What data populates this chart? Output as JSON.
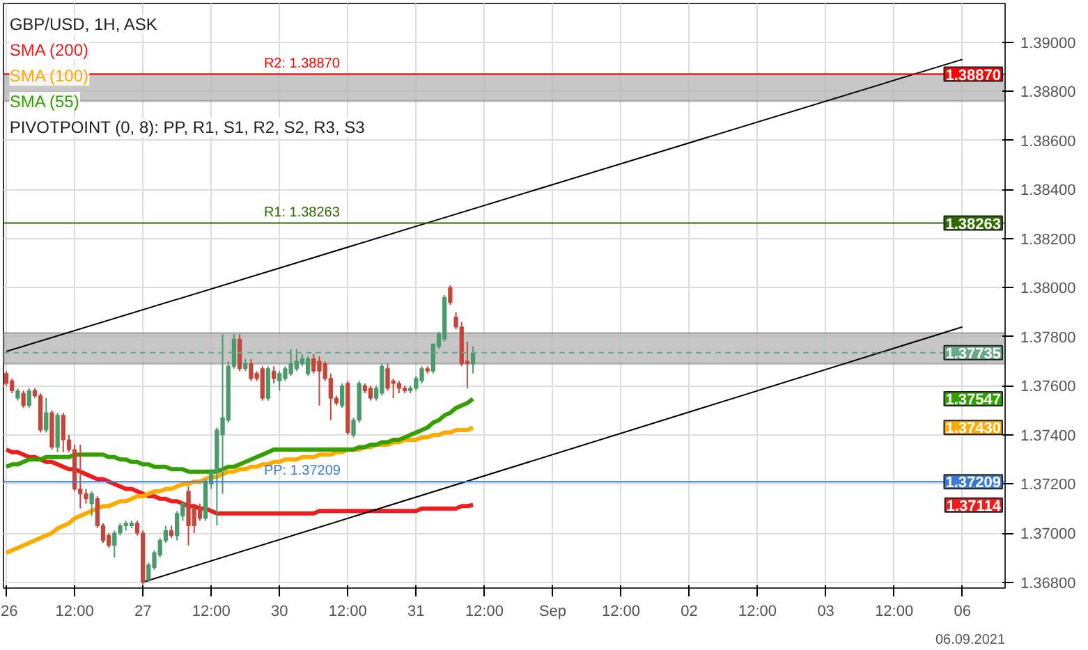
{
  "chart_data": {
    "type": "candlestick",
    "title": "GBP/USD, 1H, ASK",
    "categories": [
      "26",
      null,
      null,
      null,
      null,
      null,
      null,
      null,
      null,
      null,
      null,
      null,
      "12:00",
      null,
      null,
      null,
      null,
      null,
      null,
      null,
      null,
      null,
      null,
      null,
      "27",
      null,
      null,
      null,
      null,
      null,
      null,
      null,
      null,
      null,
      null,
      null,
      "12:00",
      null,
      null,
      null,
      null,
      null,
      null,
      null,
      null,
      null,
      null,
      null,
      "30",
      null,
      null,
      null,
      null,
      null,
      null,
      null,
      null,
      null,
      null,
      null,
      "12:00",
      null,
      null,
      null,
      null,
      null,
      null,
      null,
      null,
      null,
      null,
      null,
      "31",
      null,
      null,
      null,
      null,
      null,
      null,
      null,
      null,
      null,
      null,
      null,
      "12:00",
      null,
      null,
      null,
      null,
      null,
      null,
      null,
      null,
      null,
      null,
      null,
      "Sep",
      null,
      null,
      null,
      null,
      null,
      null,
      null,
      null,
      null,
      null,
      null,
      "12:00",
      null,
      null,
      null,
      null,
      null,
      null,
      null,
      null,
      null,
      null,
      null,
      "02",
      null,
      null,
      null,
      null,
      null,
      null,
      null,
      null,
      null,
      null,
      null,
      "12:00",
      null,
      null,
      null,
      null,
      null,
      null,
      null,
      null,
      null,
      null,
      null,
      "03",
      null,
      null,
      null,
      null,
      null,
      null,
      null,
      null,
      null,
      null,
      null,
      "12:00",
      null,
      null,
      null,
      null,
      null,
      null,
      null,
      null,
      null,
      null,
      null,
      "06",
      null,
      null,
      null,
      null,
      null,
      null,
      null
    ],
    "ohlc": [
      [
        1.3765,
        1.3766,
        1.376,
        1.3761
      ],
      [
        1.3762,
        1.3763,
        1.3757,
        1.3758
      ],
      [
        1.3755,
        1.3759,
        1.3754,
        1.3758
      ],
      [
        1.3757,
        1.3758,
        1.3751,
        1.3752
      ],
      [
        1.3752,
        1.3759,
        1.3751,
        1.3758
      ],
      [
        1.3758,
        1.3759,
        1.3755,
        1.3756
      ],
      [
        1.3756,
        1.3757,
        1.3741,
        1.3742
      ],
      [
        1.3742,
        1.3755,
        1.3741,
        1.3749
      ],
      [
        1.3749,
        1.375,
        1.3734,
        1.3735
      ],
      [
        1.3735,
        1.3749,
        1.3733,
        1.3748
      ],
      [
        1.3748,
        1.3749,
        1.3733,
        1.3738
      ],
      [
        1.3738,
        1.374,
        1.3733,
        1.3734
      ],
      [
        1.3734,
        1.3736,
        1.3717,
        1.3718
      ],
      [
        1.3718,
        1.3736,
        1.371,
        1.3716
      ],
      [
        1.3716,
        1.3718,
        1.3712,
        1.3714
      ],
      [
        1.3712,
        1.3717,
        1.3707,
        1.3716
      ],
      [
        1.3714,
        1.3715,
        1.3702,
        1.3703
      ],
      [
        1.3703,
        1.3704,
        1.3696,
        1.3697
      ],
      [
        1.3699,
        1.37,
        1.3694,
        1.3695
      ],
      [
        1.3695,
        1.3701,
        1.369,
        1.37
      ],
      [
        1.37,
        1.3704,
        1.3699,
        1.3703
      ],
      [
        1.3703,
        1.3705,
        1.3701,
        1.3704
      ],
      [
        1.3703,
        1.3705,
        1.3702,
        1.3704
      ],
      [
        1.3704,
        1.3705,
        1.3699,
        1.37
      ],
      [
        1.37,
        1.3701,
        1.3679,
        1.368
      ],
      [
        1.3681,
        1.3688,
        1.368,
        1.3687
      ],
      [
        1.3686,
        1.3693,
        1.3685,
        1.3692
      ],
      [
        1.3691,
        1.3698,
        1.369,
        1.3697
      ],
      [
        1.3697,
        1.3703,
        1.3696,
        1.3701
      ],
      [
        1.3701,
        1.3703,
        1.3698,
        1.3699
      ],
      [
        1.3699,
        1.3709,
        1.3697,
        1.3708
      ],
      [
        1.3707,
        1.3713,
        1.3705,
        1.3712
      ],
      [
        1.3717,
        1.3719,
        1.3695,
        1.3703
      ],
      [
        1.371,
        1.3712,
        1.37,
        1.3703
      ],
      [
        1.371,
        1.3712,
        1.3705,
        1.3706
      ],
      [
        1.3706,
        1.3722,
        1.3705,
        1.3721
      ],
      [
        1.372,
        1.3726,
        1.3718,
        1.3725
      ],
      [
        1.3725,
        1.3743,
        1.3703,
        1.3742
      ],
      [
        1.374,
        1.3781,
        1.3716,
        1.3747
      ],
      [
        1.3746,
        1.377,
        1.3745,
        1.3768
      ],
      [
        1.3768,
        1.3781,
        1.3767,
        1.3779
      ],
      [
        1.3779,
        1.3781,
        1.3766,
        1.3767
      ],
      [
        1.3767,
        1.3771,
        1.3766,
        1.3769
      ],
      [
        1.3769,
        1.3771,
        1.3762,
        1.3763
      ],
      [
        1.3765,
        1.3766,
        1.3762,
        1.3763
      ],
      [
        1.3767,
        1.3768,
        1.3754,
        1.3755
      ],
      [
        1.3755,
        1.3768,
        1.3754,
        1.3767
      ],
      [
        1.3766,
        1.3768,
        1.3761,
        1.3763
      ],
      [
        1.3762,
        1.3766,
        1.3758,
        1.3765
      ],
      [
        1.3763,
        1.3768,
        1.3762,
        1.3767
      ],
      [
        1.3765,
        1.3775,
        1.3764,
        1.3769
      ],
      [
        1.3767,
        1.3775,
        1.3766,
        1.377
      ],
      [
        1.3769,
        1.3773,
        1.3768,
        1.3771
      ],
      [
        1.3765,
        1.3772,
        1.3764,
        1.3771
      ],
      [
        1.3771,
        1.3773,
        1.3765,
        1.3766
      ],
      [
        1.377,
        1.3772,
        1.3752,
        1.3766
      ],
      [
        1.3769,
        1.377,
        1.3762,
        1.3763
      ],
      [
        1.3763,
        1.3765,
        1.3746,
        1.3755
      ],
      [
        1.3755,
        1.3756,
        1.3752,
        1.3753
      ],
      [
        1.3752,
        1.3761,
        1.3751,
        1.376
      ],
      [
        1.3761,
        1.3762,
        1.374,
        1.3741
      ],
      [
        1.374,
        1.3747,
        1.3739,
        1.3746
      ],
      [
        1.3746,
        1.3762,
        1.3745,
        1.3761
      ],
      [
        1.376,
        1.3761,
        1.3757,
        1.3758
      ],
      [
        1.3759,
        1.376,
        1.3754,
        1.3755
      ],
      [
        1.3755,
        1.376,
        1.3754,
        1.3759
      ],
      [
        1.3757,
        1.3769,
        1.3756,
        1.3768
      ],
      [
        1.3767,
        1.3769,
        1.3758,
        1.3759
      ],
      [
        1.3762,
        1.3763,
        1.3755,
        1.3761
      ],
      [
        1.3761,
        1.3762,
        1.3757,
        1.3759
      ],
      [
        1.3759,
        1.376,
        1.3757,
        1.3758
      ],
      [
        1.3758,
        1.376,
        1.3757,
        1.3759
      ],
      [
        1.3759,
        1.3764,
        1.3758,
        1.3763
      ],
      [
        1.3762,
        1.3768,
        1.3761,
        1.3767
      ],
      [
        1.3767,
        1.3768,
        1.3765,
        1.3766
      ],
      [
        1.3766,
        1.3777,
        1.3765,
        1.3777
      ],
      [
        1.3776,
        1.3782,
        1.3775,
        1.3781
      ],
      [
        1.3779,
        1.3797,
        1.3778,
        1.3796
      ],
      [
        1.38,
        1.3801,
        1.3793,
        1.3794
      ],
      [
        1.3788,
        1.379,
        1.3783,
        1.3784
      ],
      [
        1.3784,
        1.3786,
        1.3768,
        1.3769
      ],
      [
        1.377,
        1.3778,
        1.3759,
        1.3769
      ],
      [
        1.3769,
        1.3776,
        1.3765,
        1.37735
      ],
      null,
      null,
      null,
      null,
      null,
      null,
      null,
      null,
      null,
      null,
      null,
      null,
      null,
      null,
      null,
      null,
      null,
      null,
      null,
      null,
      null,
      null,
      null,
      null,
      null,
      null,
      null,
      null,
      null,
      null,
      null,
      null,
      null,
      null,
      null,
      null,
      null,
      null,
      null,
      null,
      null,
      null,
      null,
      null,
      null,
      null,
      null,
      null,
      null,
      null,
      null,
      null,
      null,
      null,
      null,
      null,
      null,
      null,
      null,
      null,
      null,
      null,
      null,
      null,
      null,
      null,
      null,
      null,
      null,
      null,
      null,
      null,
      null,
      null,
      null,
      null,
      null,
      null,
      null,
      null,
      null,
      null,
      null,
      null,
      null,
      null,
      null,
      null,
      null,
      null,
      null,
      null,
      null
    ],
    "colors": [
      "#c4463a",
      "#c4463a",
      "#4a9a6a",
      "#c4463a",
      "#4a9a6a",
      "#c4463a",
      "#c4463a",
      "#4a9a6a",
      "#c4463a",
      "#4a9a6a",
      "#c4463a",
      "#c4463a",
      "#c4463a",
      "#c4463a",
      "#c4463a",
      "#4a9a6a",
      "#c4463a",
      "#c4463a",
      "#c4463a",
      "#4a9a6a",
      "#4a9a6a",
      "#4a9a6a",
      "#4a9a6a",
      "#c4463a",
      "#c4463a",
      "#4a9a6a",
      "#4a9a6a",
      "#4a9a6a",
      "#4a9a6a",
      "#c4463a",
      "#4a9a6a",
      "#4a9a6a",
      "#c4463a",
      "#c4463a",
      "#c4463a",
      "#4a9a6a",
      "#4a9a6a",
      "#4a9a6a",
      "#4a9a6a",
      "#4a9a6a",
      "#4a9a6a",
      "#c4463a",
      "#4a9a6a",
      "#c4463a",
      "#c4463a",
      "#c4463a",
      "#4a9a6a",
      "#c4463a",
      "#4a9a6a",
      "#4a9a6a",
      "#4a9a6a",
      "#4a9a6a",
      "#4a9a6a",
      "#4a9a6a",
      "#c4463a",
      "#c4463a",
      "#c4463a",
      "#c4463a",
      "#c4463a",
      "#4a9a6a",
      "#c4463a",
      "#4a9a6a",
      "#4a9a6a",
      "#c4463a",
      "#c4463a",
      "#4a9a6a",
      "#4a9a6a",
      "#c4463a",
      "#c4463a",
      "#c4463a",
      "#c4463a",
      "#4a9a6a",
      "#4a9a6a",
      "#4a9a6a",
      "#c4463a",
      "#4a9a6a",
      "#4a9a6a",
      "#4a9a6a",
      "#c4463a",
      "#c4463a",
      "#c4463a",
      "#c4463a",
      "#4a9a6a",
      null,
      null,
      null,
      null,
      null,
      null,
      null,
      null,
      null,
      null,
      null,
      null,
      null,
      null,
      null,
      null,
      null,
      null,
      null,
      null,
      null,
      null,
      null,
      null,
      null,
      null,
      null,
      null,
      null,
      null,
      null,
      null,
      null,
      null,
      null,
      null,
      null,
      null,
      null,
      null,
      null,
      null,
      null,
      null,
      null,
      null,
      null,
      null,
      null,
      null,
      null,
      null,
      null,
      null,
      null,
      null,
      null,
      null,
      null,
      null,
      null,
      null,
      null,
      null,
      null,
      null,
      null,
      null,
      null,
      null,
      null,
      null,
      null,
      null,
      null,
      null,
      null,
      null,
      null,
      null,
      null,
      null,
      null,
      null,
      null,
      null,
      null,
      null,
      null,
      null,
      null,
      null,
      null
    ],
    "series": [
      {
        "type": "line",
        "name": "SMA (200)",
        "color": "#ee1c1c",
        "values": [
          1.3734,
          1.3733,
          1.3733,
          1.3732,
          1.3731,
          1.3731,
          1.373,
          1.3729,
          1.3729,
          1.3728,
          1.3727,
          1.3726,
          1.3726,
          1.3725,
          1.3724,
          1.3723,
          1.3722,
          1.3722,
          1.3721,
          1.372,
          1.3719,
          1.3718,
          1.3718,
          1.3717,
          1.3716,
          1.3715,
          1.3715,
          1.3714,
          1.3714,
          1.3713,
          1.3713,
          1.3712,
          1.3711,
          1.3711,
          1.371,
          1.371,
          1.3709,
          1.3708,
          1.3708,
          1.3708,
          1.3708,
          1.3708,
          1.3708,
          1.3708,
          1.3708,
          1.3708,
          1.3708,
          1.3708,
          1.3708,
          1.3708,
          1.3708,
          1.3708,
          1.3708,
          1.3708,
          1.3708,
          1.3709,
          1.3709,
          1.3709,
          1.3709,
          1.3709,
          1.3709,
          1.3709,
          1.3709,
          1.3709,
          1.3709,
          1.3709,
          1.3709,
          1.3709,
          1.3709,
          1.3709,
          1.3709,
          1.3709,
          1.3709,
          1.371,
          1.371,
          1.371,
          1.371,
          1.371,
          1.371,
          1.371,
          1.3711,
          1.3711,
          1.37114,
          null,
          null,
          null,
          null,
          null,
          null,
          null,
          null,
          null,
          null,
          null,
          null,
          null,
          null,
          null,
          null,
          null,
          null,
          null,
          null,
          null,
          null,
          null,
          null,
          null,
          null,
          null,
          null,
          null,
          null,
          null,
          null,
          null,
          null,
          null,
          null,
          null,
          null,
          null,
          null,
          null,
          null,
          null,
          null,
          null,
          null,
          null,
          null,
          null,
          null,
          null,
          null,
          null,
          null,
          null,
          null,
          null,
          null,
          null,
          null,
          null,
          null,
          null,
          null,
          null,
          null,
          null,
          null,
          null,
          null,
          null,
          null,
          null,
          null,
          null,
          null,
          null,
          null,
          null,
          null,
          null,
          null,
          null,
          null,
          null,
          null,
          null,
          null,
          null,
          null,
          null,
          null,
          null
        ]
      },
      {
        "type": "line",
        "name": "SMA (100)",
        "color": "#ffaa00",
        "values": [
          1.3692,
          1.3693,
          1.3694,
          1.3695,
          1.3696,
          1.3697,
          1.3698,
          1.3699,
          1.37,
          1.3702,
          1.3703,
          1.3704,
          1.3706,
          1.3707,
          1.3708,
          1.3709,
          1.371,
          1.3711,
          1.3711,
          1.3712,
          1.3713,
          1.3713,
          1.3714,
          1.3715,
          1.3715,
          1.3716,
          1.3717,
          1.3717,
          1.3718,
          1.3718,
          1.3719,
          1.372,
          1.372,
          1.3721,
          1.3721,
          1.3722,
          1.3723,
          1.3723,
          1.3724,
          1.3725,
          1.3725,
          1.3726,
          1.3726,
          1.3727,
          1.3727,
          1.3728,
          1.3728,
          1.3729,
          1.3729,
          1.373,
          1.373,
          1.373,
          1.3731,
          1.3731,
          1.3731,
          1.3732,
          1.3732,
          1.3732,
          1.3733,
          1.3733,
          1.3734,
          1.3734,
          1.3734,
          1.3735,
          1.3735,
          1.3736,
          1.3736,
          1.3736,
          1.3737,
          1.3737,
          1.3738,
          1.3738,
          1.3738,
          1.3739,
          1.3739,
          1.374,
          1.374,
          1.3741,
          1.3741,
          1.3742,
          1.3742,
          1.3742,
          1.3743,
          null,
          null,
          null,
          null,
          null,
          null,
          null,
          null,
          null,
          null,
          null,
          null,
          null,
          null,
          null,
          null,
          null,
          null,
          null,
          null,
          null,
          null,
          null,
          null,
          null,
          null,
          null,
          null,
          null,
          null,
          null,
          null,
          null,
          null,
          null,
          null,
          null,
          null,
          null,
          null,
          null,
          null,
          null,
          null,
          null,
          null,
          null,
          null,
          null,
          null,
          null,
          null,
          null,
          null,
          null,
          null,
          null,
          null,
          null,
          null,
          null,
          null,
          null,
          null,
          null,
          null,
          null,
          null,
          null,
          null,
          null,
          null,
          null,
          null,
          null,
          null,
          null,
          null,
          null,
          null,
          null,
          null,
          null,
          null,
          null,
          null,
          null,
          null,
          null,
          null,
          null,
          null,
          null
        ]
      },
      {
        "type": "line",
        "name": "SMA (55)",
        "color": "#33a000",
        "values": [
          1.3727,
          1.3728,
          1.3728,
          1.3729,
          1.373,
          1.373,
          1.373,
          1.3731,
          1.3731,
          1.3731,
          1.3731,
          1.3731,
          1.3732,
          1.3732,
          1.3732,
          1.3732,
          1.3732,
          1.3732,
          1.3731,
          1.3731,
          1.373,
          1.373,
          1.3729,
          1.3729,
          1.3728,
          1.3728,
          1.3727,
          1.3727,
          1.3727,
          1.3726,
          1.3726,
          1.3726,
          1.3725,
          1.3725,
          1.3725,
          1.3725,
          1.3725,
          1.3725,
          1.3726,
          1.3727,
          1.3727,
          1.3728,
          1.3729,
          1.373,
          1.3731,
          1.3732,
          1.3733,
          1.3734,
          1.3734,
          1.3734,
          1.3734,
          1.3734,
          1.3734,
          1.3734,
          1.3734,
          1.3734,
          1.3734,
          1.3734,
          1.3734,
          1.3734,
          1.3734,
          1.3734,
          1.3735,
          1.3735,
          1.3736,
          1.3736,
          1.3737,
          1.3737,
          1.3738,
          1.3738,
          1.3739,
          1.374,
          1.3741,
          1.3742,
          1.3743,
          1.3745,
          1.3746,
          1.3748,
          1.3749,
          1.3751,
          1.3752,
          1.3753,
          1.37547,
          null,
          null,
          null,
          null,
          null,
          null,
          null,
          null,
          null,
          null,
          null,
          null,
          null,
          null,
          null,
          null,
          null,
          null,
          null,
          null,
          null,
          null,
          null,
          null,
          null,
          null,
          null,
          null,
          null,
          null,
          null,
          null,
          null,
          null,
          null,
          null,
          null,
          null,
          null,
          null,
          null,
          null,
          null,
          null,
          null,
          null,
          null,
          null,
          null,
          null,
          null,
          null,
          null,
          null,
          null,
          null,
          null,
          null,
          null,
          null,
          null,
          null,
          null,
          null,
          null,
          null,
          null,
          null,
          null,
          null,
          null,
          null,
          null,
          null,
          null,
          null,
          null,
          null,
          null,
          null,
          null,
          null,
          null,
          null,
          null,
          null,
          null,
          null,
          null,
          null,
          null,
          null,
          null
        ]
      },
      {
        "type": "line",
        "color": "#000000",
        "x": [
          "26",
          "06"
        ],
        "values": [
          1.3774,
          1.3893
        ]
      },
      {
        "type": "line",
        "color": "#000000",
        "x": [
          "27",
          "06"
        ],
        "values": [
          1.368,
          1.3784
        ]
      }
    ],
    "ref_lines": [
      {
        "axis": "y",
        "value": 1.3887,
        "label": "R2: 1.38870",
        "color": "#ff0000"
      },
      {
        "axis": "y",
        "value": 1.38263,
        "label": "R1: 1.38263",
        "color": "#2e6b00"
      },
      {
        "axis": "y",
        "value": 1.37209,
        "label": "PP: 1.37209",
        "color": "#3a7bd5"
      },
      {
        "axis": "y",
        "value": 1.37735,
        "color": "#6aa88a",
        "line_style": "dashed"
      }
    ],
    "bands": [
      {
        "axis": "y",
        "from": 1.3876,
        "to": 1.3887,
        "color": "#b4b4b4"
      },
      {
        "axis": "y",
        "from": 1.3769,
        "to": 1.37815,
        "color": "#b4b4b4"
      }
    ],
    "annotations": [
      "PIVOTPOINT (0, 8): PP, R1, S1, R2, S2, R3, S3",
      "06.09.2021",
      "1.38870",
      "1.38263",
      "1.37209",
      "1.37735",
      "1.37114",
      "1.37430",
      "1.37547"
    ],
    "ylim": [
      1.36776,
      1.39158
    ],
    "yticks": [
      {
        "value": 1.368,
        "label": "1.36800"
      },
      {
        "value": 1.37,
        "label": "1.37000"
      },
      {
        "value": 1.372,
        "label": "1.37200"
      },
      {
        "value": 1.374,
        "label": "1.37400"
      },
      {
        "value": 1.376,
        "label": "1.37600"
      },
      {
        "value": 1.378,
        "label": "1.37800"
      },
      {
        "value": 1.38,
        "label": "1.38000"
      },
      {
        "value": 1.382,
        "label": "1.38200"
      },
      {
        "value": 1.384,
        "label": "1.38400"
      },
      {
        "value": 1.386,
        "label": "1.38600"
      },
      {
        "value": 1.388,
        "label": "1.38800"
      },
      {
        "value": 1.39,
        "label": "1.39000"
      }
    ],
    "grid": true,
    "legend": "top left"
  }
}
